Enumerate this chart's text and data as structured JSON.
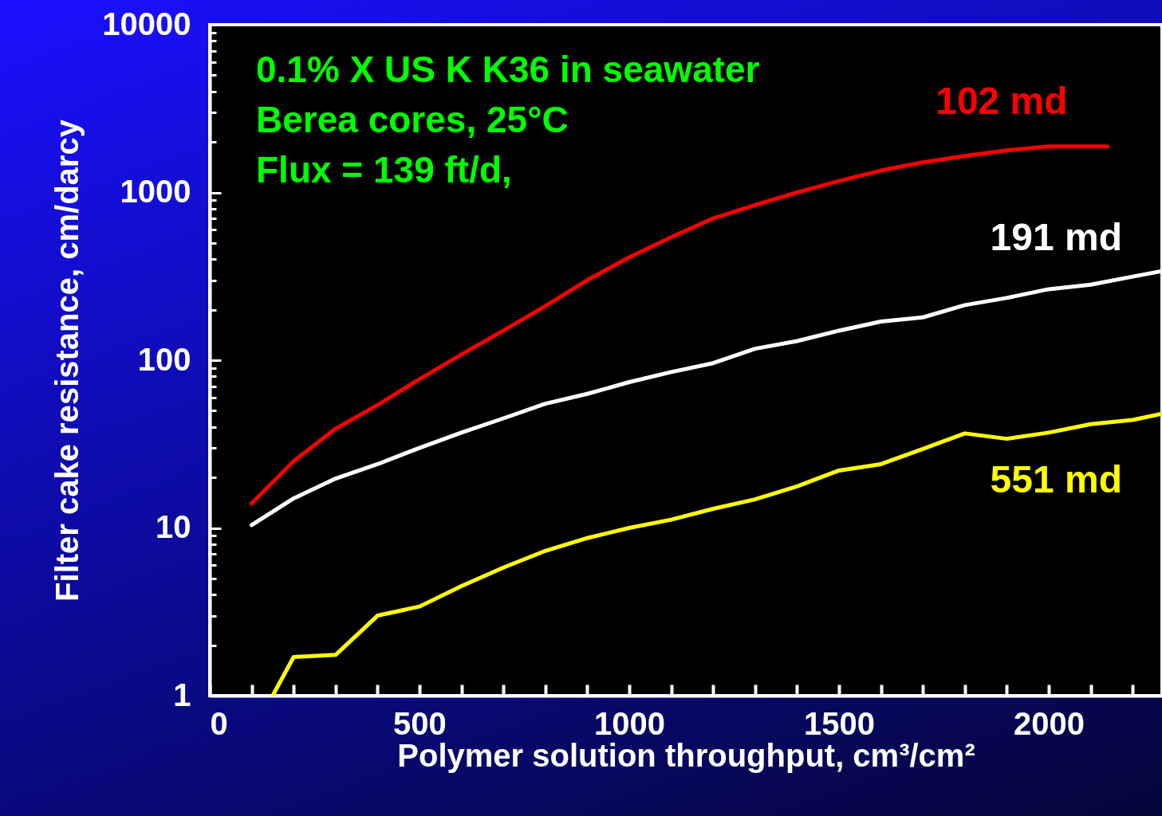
{
  "chart_data": {
    "type": "line",
    "xlabel": "Polymer solution throughput, cm³/cm²",
    "ylabel": "Filter cake resistance, cm/darcy",
    "log": "y",
    "grid": false,
    "marker": "none",
    "line_style": "solid",
    "annotations": [
      "0.1% X US K K36 in seawater",
      "Berea cores, 25°C",
      "Flux = 139 ft/d,"
    ],
    "xlim": [
      0,
      2270
    ],
    "xticks": [
      0,
      {
        "value": 100,
        "label": null
      },
      {
        "value": 200,
        "label": null
      },
      {
        "value": 300,
        "label": null
      },
      {
        "value": 400,
        "label": null
      },
      500,
      {
        "value": 600,
        "label": null
      },
      {
        "value": 700,
        "label": null
      },
      {
        "value": 800,
        "label": null
      },
      {
        "value": 900,
        "label": null
      },
      1000,
      {
        "value": 1100,
        "label": null
      },
      {
        "value": 1200,
        "label": null
      },
      {
        "value": 1300,
        "label": null
      },
      {
        "value": 1400,
        "label": null
      },
      1500,
      {
        "value": 1600,
        "label": null
      },
      {
        "value": 1700,
        "label": null
      },
      {
        "value": 1800,
        "label": null
      },
      {
        "value": 1900,
        "label": null
      },
      2000,
      {
        "value": 2100,
        "label": null
      },
      {
        "value": 2200,
        "label": null
      }
    ],
    "ylim": [
      1,
      10000
    ],
    "yticks": [
      1,
      {
        "value": 2,
        "label": null
      },
      {
        "value": 3,
        "label": null
      },
      {
        "value": 4,
        "label": null
      },
      {
        "value": 5,
        "label": null
      },
      {
        "value": 6,
        "label": null
      },
      {
        "value": 7,
        "label": null
      },
      {
        "value": 8,
        "label": null
      },
      {
        "value": 9,
        "label": null
      },
      10,
      {
        "value": 20,
        "label": null
      },
      {
        "value": 30,
        "label": null
      },
      {
        "value": 40,
        "label": null
      },
      {
        "value": 50,
        "label": null
      },
      {
        "value": 60,
        "label": null
      },
      {
        "value": 70,
        "label": null
      },
      {
        "value": 80,
        "label": null
      },
      {
        "value": 90,
        "label": null
      },
      100,
      {
        "value": 200,
        "label": null
      },
      {
        "value": 300,
        "label": null
      },
      {
        "value": 400,
        "label": null
      },
      {
        "value": 500,
        "label": null
      },
      {
        "value": 600,
        "label": null
      },
      {
        "value": 700,
        "label": null
      },
      {
        "value": 800,
        "label": null
      },
      {
        "value": 900,
        "label": null
      },
      1000,
      {
        "value": 2000,
        "label": null
      },
      {
        "value": 3000,
        "label": null
      },
      {
        "value": 4000,
        "label": null
      },
      {
        "value": 5000,
        "label": null
      },
      {
        "value": 6000,
        "label": null
      },
      {
        "value": 7000,
        "label": null
      },
      {
        "value": 8000,
        "label": null
      },
      {
        "value": 9000,
        "label": null
      },
      10000
    ],
    "series": [
      {
        "name": "102 md",
        "color": "#ff0000",
        "x": [
          100,
          200,
          300,
          400,
          500,
          600,
          700,
          800,
          900,
          1000,
          1100,
          1200,
          1300,
          1400,
          1500,
          1600,
          1700,
          1800,
          1900,
          2000,
          2140
        ],
        "values": [
          14,
          25,
          39,
          54,
          77,
          108,
          150,
          210,
          300,
          410,
          540,
          700,
          840,
          1000,
          1170,
          1350,
          1510,
          1650,
          1780,
          1880,
          1880
        ]
      },
      {
        "name": "191 md",
        "color": "#ffffff",
        "x": [
          100,
          200,
          300,
          400,
          500,
          600,
          700,
          800,
          900,
          1000,
          1100,
          1200,
          1300,
          1400,
          1500,
          1600,
          1700,
          1800,
          1900,
          2000,
          2100,
          2200,
          2270
        ],
        "values": [
          10.4,
          15,
          19.7,
          24,
          30,
          37,
          45,
          55,
          63,
          74,
          85,
          96,
          117,
          130,
          150,
          170,
          180,
          213,
          235,
          265,
          282,
          315,
          340
        ]
      },
      {
        "name": "551 md",
        "color": "#ffff00",
        "x": [
          150,
          200,
          300,
          400,
          500,
          600,
          700,
          800,
          900,
          1000,
          1100,
          1200,
          1300,
          1400,
          1500,
          1600,
          1700,
          1800,
          1900,
          2000,
          2100,
          2200,
          2270
        ],
        "values": [
          1,
          1.7,
          1.75,
          3,
          3.4,
          4.5,
          5.8,
          7.3,
          8.7,
          10,
          11.2,
          13,
          14.8,
          17.7,
          22,
          24,
          29.6,
          36.6,
          34,
          37,
          41.6,
          44,
          48
        ]
      }
    ]
  }
}
